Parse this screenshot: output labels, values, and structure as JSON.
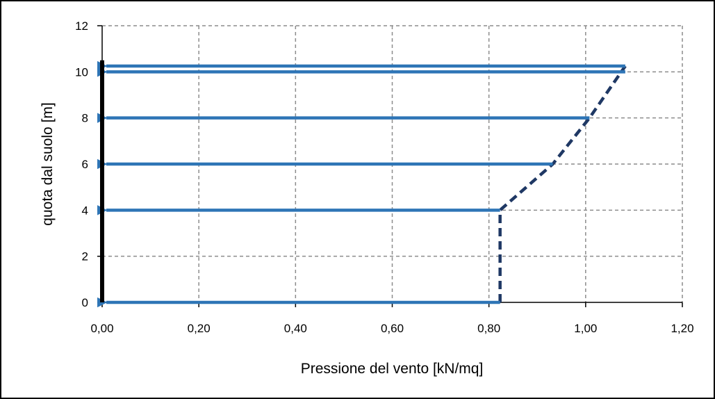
{
  "chart_data": {
    "type": "line",
    "title": "",
    "xlabel": "Pressione del vento [kN/mq]",
    "ylabel": "quota dal suolo  [m]",
    "xlim": [
      0,
      1.2
    ],
    "ylim": [
      0,
      12
    ],
    "x_ticks": [
      "0,00",
      "0,20",
      "0,40",
      "0,60",
      "0,80",
      "1,00",
      "1,20"
    ],
    "y_ticks": [
      "0",
      "2",
      "4",
      "6",
      "8",
      "10",
      "12"
    ],
    "grid": true,
    "legend": "none",
    "series": [
      {
        "kind": "profile-dashed",
        "color": "#1f3864",
        "points": [
          {
            "x": 0.823,
            "y": 0
          },
          {
            "x": 0.823,
            "y": 4
          },
          {
            "x": 0.932,
            "y": 6
          },
          {
            "x": 1.008,
            "y": 8
          },
          {
            "x": 1.082,
            "y": 10.25
          }
        ]
      },
      {
        "kind": "load-arrows",
        "color": "#2e75b6",
        "arrows": [
          {
            "y": 0,
            "x": 0.823
          },
          {
            "y": 4,
            "x": 0.823
          },
          {
            "y": 6,
            "x": 0.932
          },
          {
            "y": 8,
            "x": 1.008
          },
          {
            "y": 10.0,
            "x": 1.082
          },
          {
            "y": 10.25,
            "x": 1.082
          }
        ]
      },
      {
        "kind": "wall",
        "color": "#000000",
        "points": [
          {
            "x": 0,
            "y": 0
          },
          {
            "x": 0,
            "y": 10.5
          }
        ]
      }
    ]
  }
}
